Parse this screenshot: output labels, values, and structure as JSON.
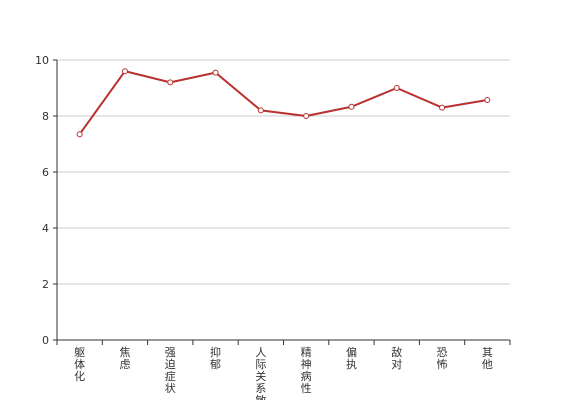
{
  "chart_data": {
    "type": "line",
    "categories": [
      "躯体化",
      "焦虑",
      "强迫症状",
      "抑郁",
      "人际关系敏感",
      "精神病性",
      "偏执",
      "敌对",
      "恐怖",
      "其他"
    ],
    "series": [
      {
        "values": [
          7.35,
          9.6,
          9.2,
          9.55,
          8.2,
          8.0,
          8.33,
          9.0,
          8.3,
          8.57
        ]
      }
    ],
    "yticks": [
      0,
      2,
      4,
      6,
      8,
      10
    ],
    "ylim": [
      0,
      10
    ],
    "grid": true,
    "colors": {
      "line": "#b8312f",
      "grid": "#cccccc",
      "axis": "#333333",
      "point_fill": "#ffffff"
    }
  }
}
